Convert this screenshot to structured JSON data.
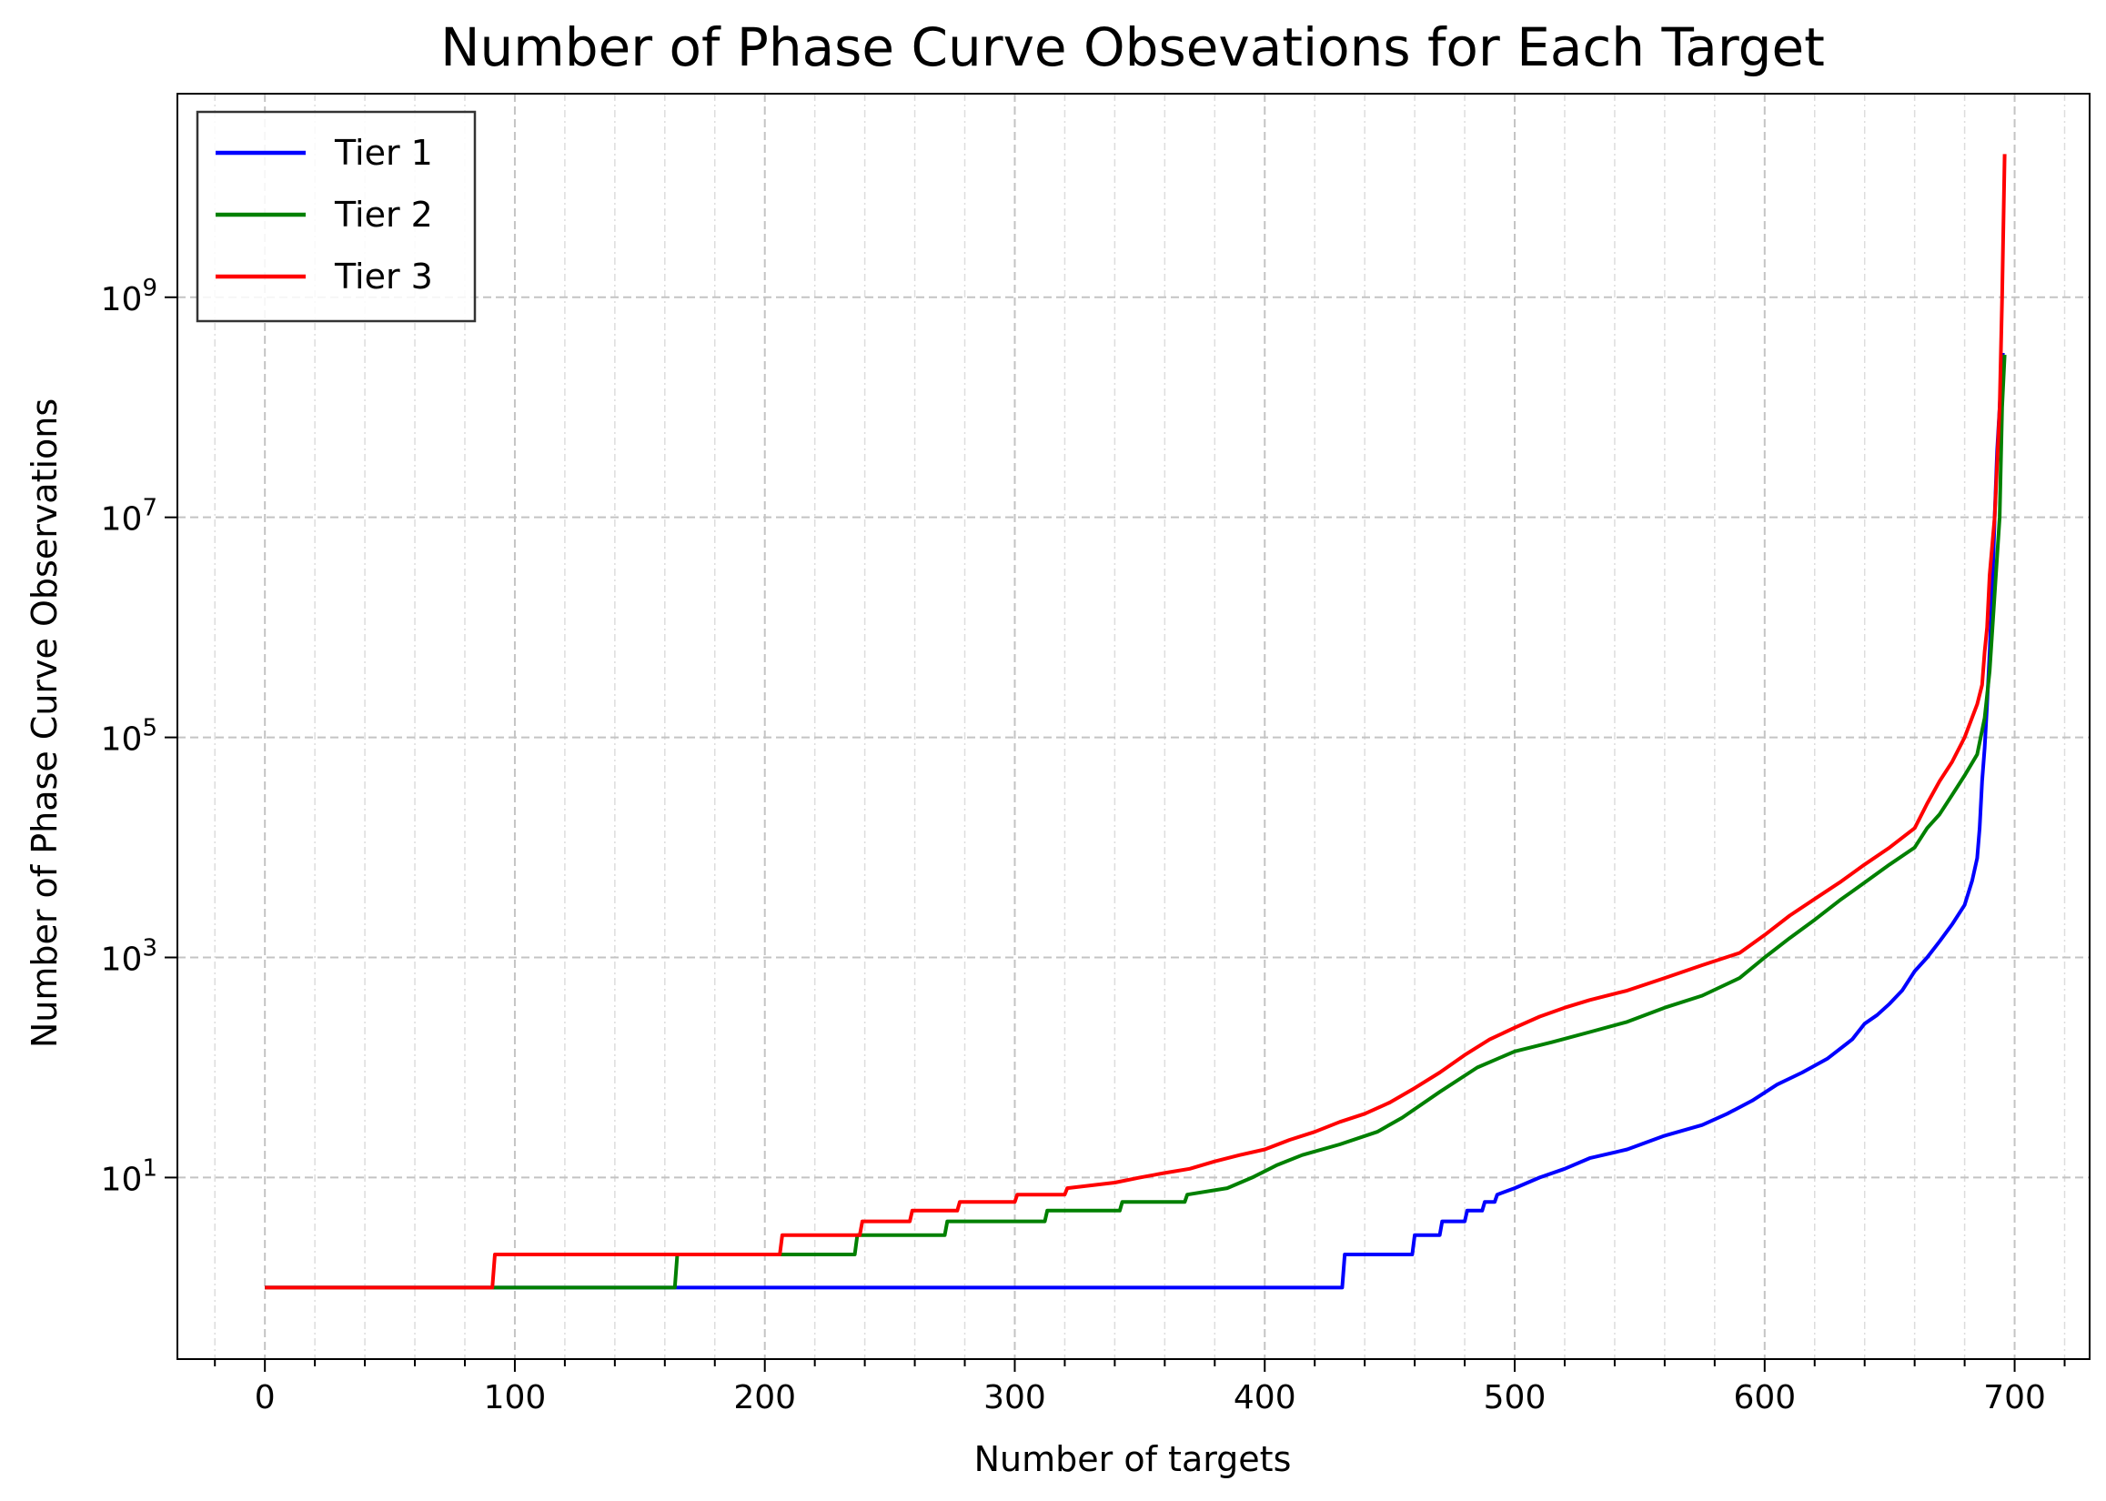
{
  "chart_data": {
    "type": "line",
    "title": "Number of Phase Curve Obsevations for Each Target",
    "xlabel": "Number of targets",
    "ylabel": "Number of Phase Curve Observations",
    "xlim": [
      -35,
      730
    ],
    "ylim_log10": [
      -0.65,
      10.85
    ],
    "y_scale": "log",
    "grid": true,
    "legend_position": "top-left",
    "xticks": [
      0,
      100,
      200,
      300,
      400,
      500,
      600,
      700
    ],
    "xtick_labels": [
      "0",
      "100",
      "200",
      "300",
      "400",
      "500",
      "600",
      "700"
    ],
    "yticks_log10": [
      1,
      3,
      5,
      7,
      9
    ],
    "ytick_labels": [
      {
        "base": "10",
        "exp": "1"
      },
      {
        "base": "10",
        "exp": "3"
      },
      {
        "base": "10",
        "exp": "5"
      },
      {
        "base": "10",
        "exp": "7"
      },
      {
        "base": "10",
        "exp": "9"
      }
    ],
    "series": [
      {
        "name": "Tier 1",
        "color": "#0000ff",
        "x": [
          0,
          431,
          432,
          459,
          460,
          470,
          471,
          480,
          481,
          487,
          488,
          492,
          493,
          500,
          510,
          520,
          530,
          545,
          560,
          575,
          585,
          595,
          605,
          615,
          625,
          635,
          640,
          645,
          650,
          655,
          660,
          665,
          670,
          675,
          680,
          683,
          685,
          686,
          687,
          688,
          689,
          690,
          691,
          692,
          693,
          694,
          695,
          696
        ],
        "y": [
          1,
          1,
          2,
          2,
          3,
          3,
          4,
          4,
          5,
          5,
          6,
          6,
          7,
          8,
          10,
          12,
          15,
          18,
          24,
          30,
          38,
          50,
          70,
          90,
          120,
          180,
          250,
          300,
          380,
          500,
          750,
          1000,
          1400,
          2000,
          3000,
          5000,
          8000,
          15000,
          40000,
          80000,
          200000,
          600000,
          2000000,
          10000000,
          40000000,
          100000000,
          300000000,
          300000000
        ]
      },
      {
        "name": "Tier 2",
        "color": "#008000",
        "x": [
          0,
          164,
          165,
          236,
          237,
          272,
          273,
          312,
          313,
          342,
          343,
          368,
          369,
          385,
          395,
          405,
          415,
          430,
          445,
          455,
          470,
          485,
          500,
          515,
          530,
          545,
          560,
          575,
          590,
          600,
          610,
          620,
          630,
          640,
          650,
          660,
          665,
          670,
          675,
          680,
          685,
          688,
          690,
          692,
          694,
          695,
          696
        ],
        "y": [
          1,
          1,
          2,
          2,
          3,
          3,
          4,
          4,
          5,
          5,
          6,
          6,
          7,
          8,
          10,
          13,
          16,
          20,
          26,
          35,
          60,
          100,
          140,
          170,
          210,
          260,
          350,
          450,
          650,
          1000,
          1500,
          2200,
          3300,
          4800,
          7000,
          10000,
          15000,
          20000,
          30000,
          45000,
          70000,
          150000,
          400000,
          2000000,
          10000000,
          100000000,
          300000000
        ]
      },
      {
        "name": "Tier 3",
        "color": "#ff0000",
        "x": [
          0,
          91,
          92,
          206,
          207,
          238,
          239,
          258,
          259,
          277,
          278,
          300,
          301,
          320,
          321,
          340,
          350,
          360,
          370,
          380,
          390,
          400,
          410,
          420,
          430,
          440,
          450,
          460,
          470,
          480,
          490,
          500,
          510,
          520,
          530,
          545,
          560,
          575,
          590,
          600,
          610,
          620,
          630,
          640,
          650,
          660,
          665,
          670,
          675,
          680,
          685,
          687,
          688,
          689,
          690,
          692,
          694,
          695,
          696
        ],
        "y": [
          1,
          1,
          2,
          2,
          3,
          3,
          4,
          4,
          5,
          5,
          6,
          6,
          7,
          7,
          8,
          9,
          10,
          11,
          12,
          14,
          16,
          18,
          22,
          26,
          32,
          38,
          48,
          65,
          90,
          130,
          180,
          230,
          290,
          350,
          410,
          500,
          650,
          850,
          1100,
          1600,
          2400,
          3400,
          4800,
          7000,
          10000,
          15000,
          25000,
          40000,
          60000,
          100000,
          200000,
          300000,
          600000,
          1000000,
          3000000,
          10000000,
          100000000,
          1000000000,
          20000000000
        ]
      }
    ]
  }
}
